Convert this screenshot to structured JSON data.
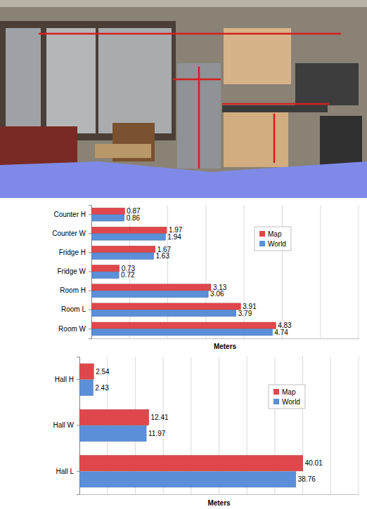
{
  "chart_data": [
    {
      "type": "bar",
      "orientation": "horizontal",
      "categories": [
        "Counter H",
        "Counter W",
        "Fridge H",
        "Fridge W",
        "Room H",
        "Room L",
        "Room W"
      ],
      "series": [
        {
          "name": "Map",
          "color": "#e0474c",
          "values": [
            0.87,
            1.97,
            1.67,
            0.73,
            3.13,
            3.91,
            4.83
          ]
        },
        {
          "name": "World",
          "color": "#5b8fd9",
          "values": [
            0.86,
            1.94,
            1.63,
            0.72,
            3.06,
            3.79,
            4.74
          ]
        }
      ],
      "xlabel": "Meters",
      "xlim": [
        0,
        7
      ],
      "xticks": [
        0,
        1,
        2,
        3,
        4,
        5,
        6,
        7
      ],
      "grid": true,
      "legend": "top-right",
      "data_labels": true,
      "tick_labels": "y"
    },
    {
      "type": "bar",
      "orientation": "horizontal",
      "categories": [
        "Hall H",
        "Hall W",
        "Hall L"
      ],
      "series": [
        {
          "name": "Map",
          "color": "#e0474c",
          "values": [
            2.54,
            12.41,
            40.01
          ]
        },
        {
          "name": "World",
          "color": "#5b8fd9",
          "values": [
            2.43,
            11.97,
            38.76
          ]
        }
      ],
      "xlabel": "Meters",
      "xlim": [
        0,
        50
      ],
      "xticks": [
        0,
        5,
        10,
        15,
        20,
        25,
        30,
        35,
        40,
        45,
        50
      ],
      "grid": true,
      "legend": "top-right",
      "data_labels": true,
      "tick_labels": "y"
    }
  ]
}
